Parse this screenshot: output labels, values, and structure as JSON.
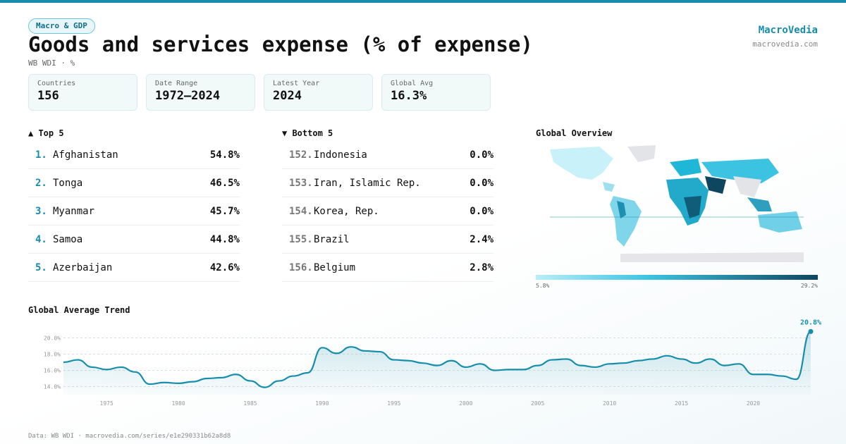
{
  "header": {
    "tag": "Macro & GDP",
    "title": "Goods and services expense (% of expense)",
    "subtitle": "WB WDI · %",
    "brand": "MacroVedia",
    "site": "macrovedia.com"
  },
  "stats": [
    {
      "label": "Countries",
      "value": "156"
    },
    {
      "label": "Date Range",
      "value": "1972–2024"
    },
    {
      "label": "Latest Year",
      "value": "2024"
    },
    {
      "label": "Global Avg",
      "value": "16.3%"
    }
  ],
  "top": {
    "title": "▲ Top 5",
    "rows": [
      [
        "1.",
        "Afghanistan",
        "54.8%"
      ],
      [
        "2.",
        "Tonga",
        "46.5%"
      ],
      [
        "3.",
        "Myanmar",
        "45.7%"
      ],
      [
        "4.",
        "Samoa",
        "44.8%"
      ],
      [
        "5.",
        "Azerbaijan",
        "42.6%"
      ]
    ]
  },
  "bottom": {
    "title": "▼ Bottom 5",
    "rows": [
      [
        "152.",
        "Indonesia",
        "0.0%"
      ],
      [
        "153.",
        "Iran, Islamic Rep.",
        "0.0%"
      ],
      [
        "154.",
        "Korea, Rep.",
        "0.0%"
      ],
      [
        "155.",
        "Brazil",
        "2.4%"
      ],
      [
        "156.",
        "Belgium",
        "2.8%"
      ]
    ]
  },
  "overview": {
    "title": "Global Overview",
    "legend_min": "5.8%",
    "legend_max": "29.2%"
  },
  "chart_data": {
    "type": "line",
    "title": "Global Average Trend",
    "color": "#168eab",
    "x": [
      1972,
      1973,
      1974,
      1975,
      1976,
      1977,
      1978,
      1979,
      1980,
      1981,
      1982,
      1983,
      1984,
      1985,
      1986,
      1987,
      1988,
      1989,
      1990,
      1991,
      1992,
      1993,
      1994,
      1995,
      1996,
      1997,
      1998,
      1999,
      2000,
      2001,
      2002,
      2003,
      2004,
      2005,
      2006,
      2007,
      2008,
      2009,
      2010,
      2011,
      2012,
      2013,
      2014,
      2015,
      2016,
      2017,
      2018,
      2019,
      2020,
      2021,
      2022,
      2023,
      2024
    ],
    "values": [
      17.0,
      17.3,
      16.4,
      16.1,
      16.4,
      15.8,
      14.3,
      14.5,
      14.4,
      14.6,
      15.0,
      15.1,
      15.5,
      14.7,
      13.9,
      14.7,
      15.3,
      15.7,
      18.8,
      18.1,
      18.9,
      18.4,
      18.3,
      17.3,
      17.2,
      16.9,
      16.6,
      17.2,
      16.4,
      16.8,
      16.0,
      16.1,
      16.1,
      16.6,
      17.3,
      17.4,
      16.6,
      16.4,
      16.8,
      16.9,
      17.2,
      17.4,
      17.8,
      17.4,
      16.9,
      17.4,
      16.6,
      16.8,
      15.5,
      15.5,
      15.3,
      14.9,
      20.8
    ],
    "value_labels": [
      null,
      null,
      null,
      null,
      null,
      null,
      null,
      null,
      null,
      null,
      null,
      null,
      null,
      null,
      null,
      null,
      null,
      null,
      null,
      null,
      null,
      null,
      null,
      null,
      null,
      null,
      null,
      null,
      null,
      null,
      null,
      null,
      null,
      null,
      null,
      null,
      null,
      null,
      null,
      null,
      null,
      null,
      null,
      null,
      null,
      null,
      null,
      null,
      null,
      null,
      null,
      null,
      "20.8%"
    ],
    "xlim": [
      1972,
      2024
    ],
    "xticks": [
      1975,
      1980,
      1985,
      1990,
      1995,
      2000,
      2005,
      2010,
      2015,
      2020
    ],
    "ylim": [
      13,
      21.7
    ],
    "yticks": [
      {
        "value": 14,
        "label": "14.0%"
      },
      {
        "value": 16,
        "label": "16.0%"
      },
      {
        "value": 18,
        "label": "18.0%"
      },
      {
        "value": 20,
        "label": "20.0%"
      }
    ],
    "grid": true
  },
  "footer": "Data: WB WDI · macrovedia.com/series/e1e290331b62a8d8"
}
